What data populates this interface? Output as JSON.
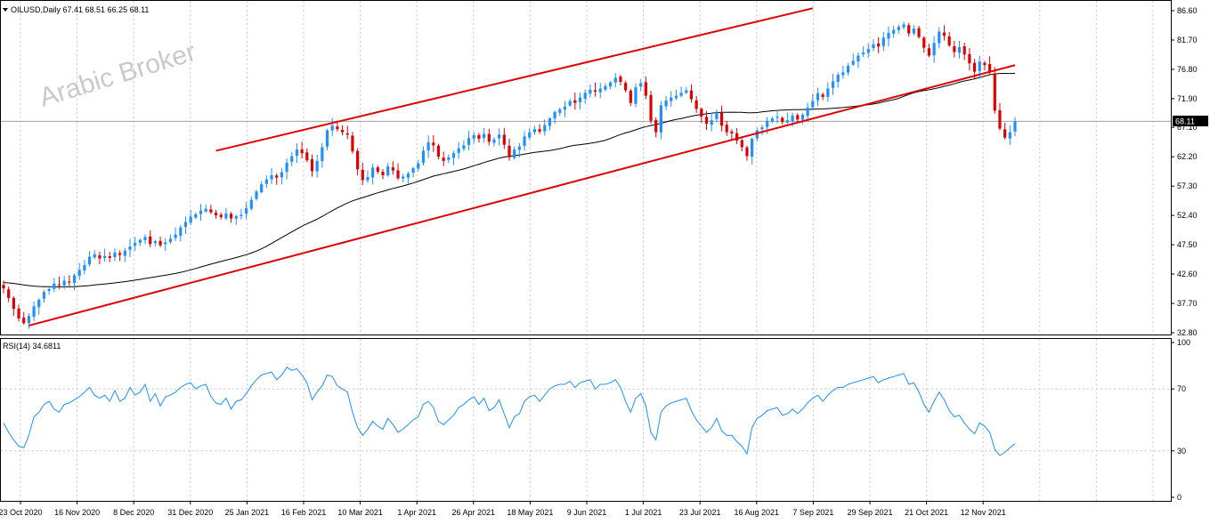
{
  "header": {
    "symbol_line": "OILUSD,Daily  67.41 68.51 66.25 68.11"
  },
  "watermark": {
    "text": "Arabic Broker"
  },
  "price_panel": {
    "y_ticks": [
      "86.60",
      "81.70",
      "76.80",
      "71.90",
      "67.10",
      "62.20",
      "57.30",
      "52.40",
      "47.50",
      "42.60",
      "37.70",
      "32.80"
    ],
    "y_values": [
      86.6,
      81.7,
      76.8,
      71.9,
      67.1,
      62.2,
      57.3,
      52.4,
      47.5,
      42.6,
      37.7,
      32.8
    ],
    "current_price": "68.11",
    "current_price_value": 68.11
  },
  "rsi_panel": {
    "label": "RSI(14) 34.6811",
    "y_ticks": [
      "100",
      "70",
      "30",
      "0"
    ],
    "y_values": [
      100,
      70,
      30,
      0
    ]
  },
  "x_axis": {
    "labels": [
      "23 Oct 2020",
      "16 Nov 2020",
      "8 Dec 2020",
      "31 Dec 2020",
      "25 Jan 2021",
      "16 Feb 2021",
      "10 Mar 2021",
      "1 Apr 2021",
      "26 Apr 2021",
      "18 May 2021",
      "9 Jun 2021",
      "1 Jul 2021",
      "23 Jul 2021",
      "16 Aug 2021",
      "7 Sep 2021",
      "29 Sep 2021",
      "21 Oct 2021",
      "12 Nov 2021"
    ]
  },
  "colors": {
    "bull": "#1e90ff",
    "bear": "#e00000",
    "channel": "#e00000",
    "ma": "#000000",
    "rsi": "#1e90ff",
    "grid": "#c8c8c8"
  },
  "chart_data": {
    "type": "candlestick",
    "symbol": "OILUSD",
    "timeframe": "Daily",
    "last_bar": {
      "open": 67.41,
      "high": 68.51,
      "low": 66.25,
      "close": 68.11
    },
    "closes": [
      40.2,
      38.6,
      36.8,
      35.2,
      34.4,
      35.6,
      37.2,
      38.3,
      39.6,
      40.1,
      41.0,
      40.8,
      41.5,
      41.2,
      42.4,
      43.3,
      44.1,
      45.5,
      45.9,
      45.2,
      45.6,
      45.3,
      46.2,
      45.8,
      46.5,
      47.2,
      47.8,
      48.3,
      48.8,
      47.6,
      48.1,
      47.4,
      47.9,
      48.5,
      49.2,
      50.4,
      51.3,
      52.2,
      52.6,
      53.2,
      53.5,
      52.9,
      52.4,
      52.1,
      52.7,
      51.9,
      52.3,
      52.5,
      53.6,
      55.0,
      56.4,
      57.6,
      58.4,
      59.1,
      58.7,
      59.6,
      61.2,
      62.3,
      63.4,
      62.8,
      61.6,
      59.8,
      61.5,
      63.8,
      66.6,
      67.4,
      66.8,
      66.3,
      65.9,
      63.1,
      60.1,
      58.3,
      58.8,
      60.4,
      59.7,
      59.1,
      60.6,
      59.9,
      58.6,
      58.9,
      59.4,
      60.3,
      61.1,
      63.2,
      64.6,
      64.1,
      62.2,
      61.5,
      62.1,
      62.8,
      63.6,
      64.1,
      65.3,
      65.8,
      65.2,
      66.0,
      64.7,
      65.1,
      65.9,
      64.2,
      62.1,
      63.4,
      63.9,
      65.6,
      66.3,
      66.8,
      66.4,
      67.5,
      68.6,
      69.7,
      70.1,
      70.6,
      71.5,
      71.2,
      72.1,
      72.9,
      73.4,
      73.1,
      73.6,
      74.0,
      74.6,
      75.4,
      74.7,
      73.3,
      71.2,
      73.8,
      74.5,
      72.4,
      68.2,
      66.3,
      70.8,
      71.6,
      72.1,
      72.4,
      72.9,
      73.3,
      71.8,
      70.2,
      68.9,
      67.7,
      68.3,
      69.6,
      67.4,
      66.3,
      66.1,
      64.9,
      63.8,
      62.3,
      65.2,
      66.6,
      67.1,
      68.2,
      68.6,
      68.9,
      68.0,
      68.3,
      69.1,
      68.4,
      69.2,
      70.4,
      71.5,
      72.8,
      72.2,
      73.6,
      74.8,
      75.9,
      76.3,
      77.4,
      78.2,
      79.1,
      79.6,
      80.2,
      81.0,
      80.6,
      82.1,
      82.9,
      83.4,
      83.9,
      84.3,
      82.8,
      83.6,
      82.2,
      80.4,
      79.1,
      81.2,
      83.1,
      82.4,
      80.8,
      79.7,
      80.5,
      79.3,
      77.8,
      76.4,
      78.1,
      77.5,
      76.3,
      69.9,
      66.9,
      65.4,
      66.3,
      68.11
    ],
    "ma_period_hint": 50,
    "channel_upper": {
      "start_index": 42,
      "start_value": 63.2,
      "end_index": 160,
      "end_value": 87.0
    },
    "channel_lower": {
      "start_index": 5,
      "start_value": 34.0,
      "end_index": 200,
      "end_value": 77.5
    },
    "rsi": [
      48,
      42,
      37,
      33,
      32,
      40,
      52,
      55,
      60,
      62,
      57,
      55,
      60,
      61,
      63,
      65,
      68,
      71,
      66,
      64,
      66,
      62,
      69,
      62,
      64,
      71,
      66,
      68,
      73,
      62,
      67,
      59,
      65,
      66,
      68,
      71,
      73,
      74,
      70,
      72,
      73,
      65,
      61,
      60,
      64,
      57,
      62,
      63,
      67,
      72,
      76,
      79,
      80,
      81,
      76,
      79,
      84,
      82,
      83,
      79,
      74,
      63,
      68,
      72,
      79,
      78,
      72,
      70,
      68,
      55,
      45,
      40,
      44,
      49,
      46,
      44,
      51,
      47,
      42,
      44,
      47,
      50,
      52,
      60,
      62,
      58,
      49,
      47,
      50,
      53,
      58,
      60,
      63,
      65,
      60,
      64,
      56,
      58,
      63,
      54,
      45,
      52,
      54,
      62,
      65,
      66,
      62,
      66,
      70,
      72,
      73,
      73,
      75,
      71,
      74,
      75,
      76,
      70,
      73,
      73,
      74,
      76,
      71,
      62,
      55,
      64,
      67,
      59,
      42,
      37,
      55,
      59,
      61,
      62,
      63,
      64,
      56,
      50,
      46,
      42,
      45,
      51,
      43,
      40,
      40,
      36,
      33,
      28,
      45,
      51,
      53,
      56,
      57,
      58,
      53,
      54,
      57,
      54,
      57,
      61,
      64,
      66,
      62,
      66,
      69,
      71,
      71,
      73,
      74,
      75,
      76,
      77,
      78,
      74,
      76,
      77,
      78,
      79,
      80,
      73,
      74,
      68,
      60,
      55,
      62,
      68,
      63,
      56,
      52,
      53,
      48,
      44,
      41,
      48,
      46,
      42,
      31,
      27,
      29,
      32,
      34.68
    ]
  }
}
